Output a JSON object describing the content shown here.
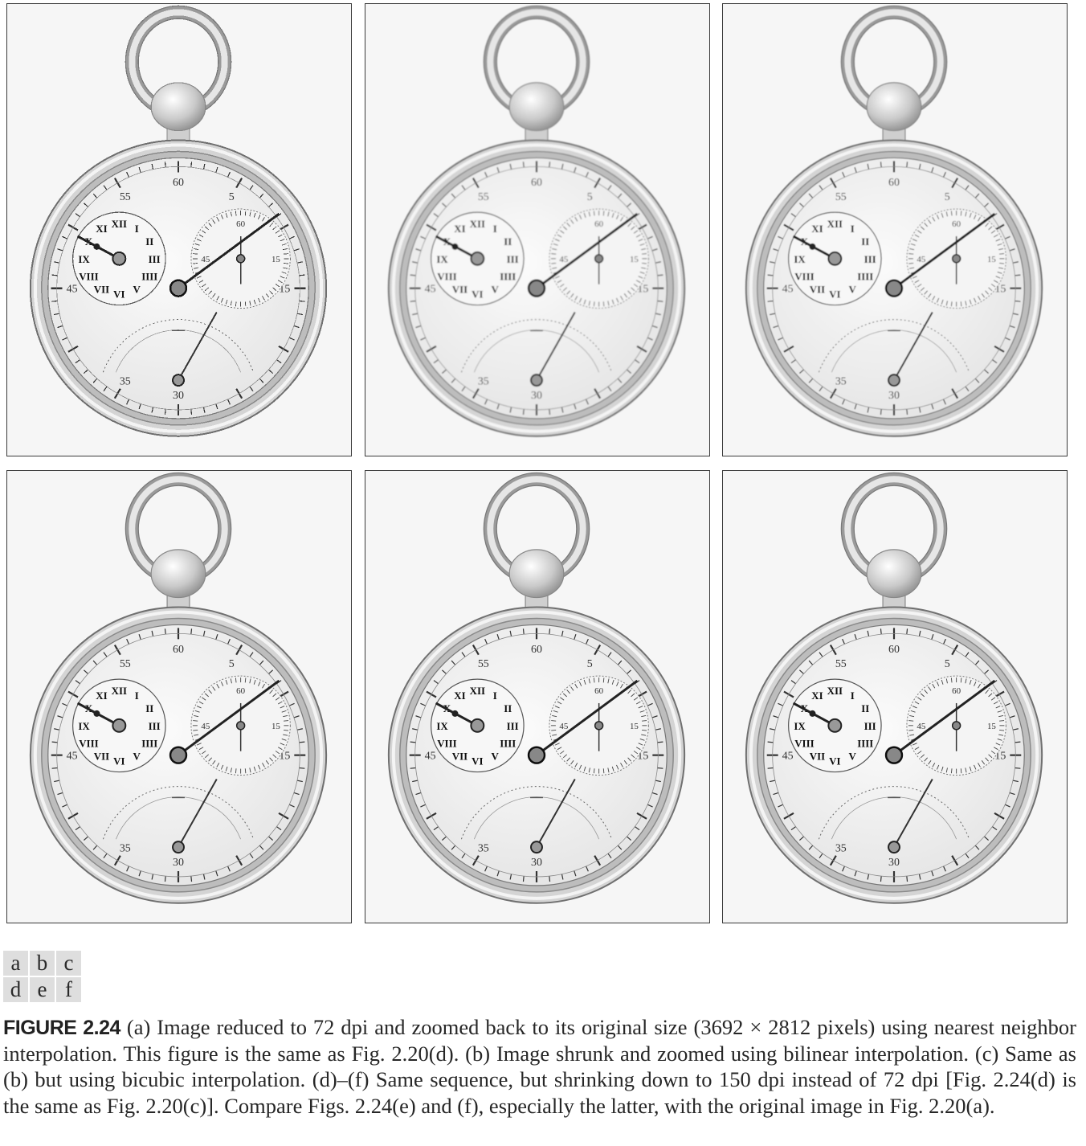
{
  "panels": [
    {
      "id": "a",
      "blur": 0,
      "pixelated": true
    },
    {
      "id": "b",
      "blur": 0.9,
      "pixelated": false
    },
    {
      "id": "c",
      "blur": 0.6,
      "pixelated": false
    },
    {
      "id": "d",
      "blur": 0,
      "pixelated": false
    },
    {
      "id": "e",
      "blur": 0.4,
      "pixelated": false
    },
    {
      "id": "f",
      "blur": 0.2,
      "pixelated": false
    }
  ],
  "dial_numbers": {
    "main": [
      "60",
      "5",
      "15",
      "30",
      "35",
      "45",
      "55"
    ],
    "seconds": [
      "60",
      "15",
      "45"
    ],
    "roman": [
      "XII",
      "I",
      "II",
      "III",
      "IIII",
      "V",
      "VI",
      "VII",
      "VIII",
      "IX",
      "X",
      "XI"
    ]
  },
  "subfigure_labels": [
    "a",
    "b",
    "c",
    "d",
    "e",
    "f"
  ],
  "caption": {
    "figure_number": "FIGURE 2.24",
    "text": "(a) Image reduced to 72 dpi and zoomed back to its original size (3692 × 2812 pixels) using nearest neighbor interpolation. This figure is the same as Fig. 2.20(d). (b) Image shrunk and zoomed using bilinear interpolation. (c) Same as (b) but using bicubic interpolation. (d)–(f) Same sequence, but shrinking down to 150 dpi instead of 72 dpi [Fig. 2.24(d) is the same as Fig. 2.20(c)]. Compare Figs. 2.24(e) and (f), especially the latter, with the original image in Fig. 2.20(a)."
  }
}
